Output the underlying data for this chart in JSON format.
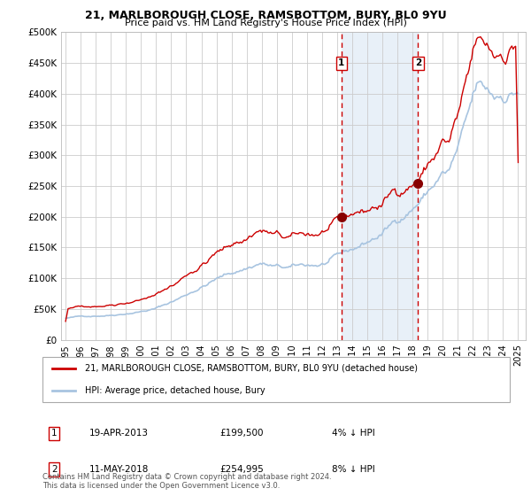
{
  "title1": "21, MARLBOROUGH CLOSE, RAMSBOTTOM, BURY, BL0 9YU",
  "title2": "Price paid vs. HM Land Registry's House Price Index (HPI)",
  "legend_line1": "21, MARLBOROUGH CLOSE, RAMSBOTTOM, BURY, BL0 9YU (detached house)",
  "legend_line2": "HPI: Average price, detached house, Bury",
  "annotation1_date": "19-APR-2013",
  "annotation1_price": "£199,500",
  "annotation1_hpi": "4% ↓ HPI",
  "annotation2_date": "11-MAY-2018",
  "annotation2_price": "£254,995",
  "annotation2_hpi": "8% ↓ HPI",
  "sale1_x": 2013.29,
  "sale1_y": 199500,
  "sale2_x": 2018.36,
  "sale2_y": 254995,
  "footer": "Contains HM Land Registry data © Crown copyright and database right 2024.\nThis data is licensed under the Open Government Licence v3.0.",
  "hpi_color": "#a8c4e0",
  "price_color": "#cc0000",
  "sale_dot_color": "#880000",
  "shade_color": "#ddeeff",
  "dashed_line_color": "#cc0000",
  "background_color": "#ffffff",
  "grid_color": "#cccccc",
  "ylim": [
    0,
    500000
  ],
  "xlim_start": 1994.7,
  "xlim_end": 2025.5,
  "yticks": [
    0,
    50000,
    100000,
    150000,
    200000,
    250000,
    300000,
    350000,
    400000,
    450000,
    500000
  ],
  "xticks": [
    1995,
    1996,
    1997,
    1998,
    1999,
    2000,
    2001,
    2002,
    2003,
    2004,
    2005,
    2006,
    2007,
    2008,
    2009,
    2010,
    2011,
    2012,
    2013,
    2014,
    2015,
    2016,
    2017,
    2018,
    2019,
    2020,
    2021,
    2022,
    2023,
    2024,
    2025
  ]
}
